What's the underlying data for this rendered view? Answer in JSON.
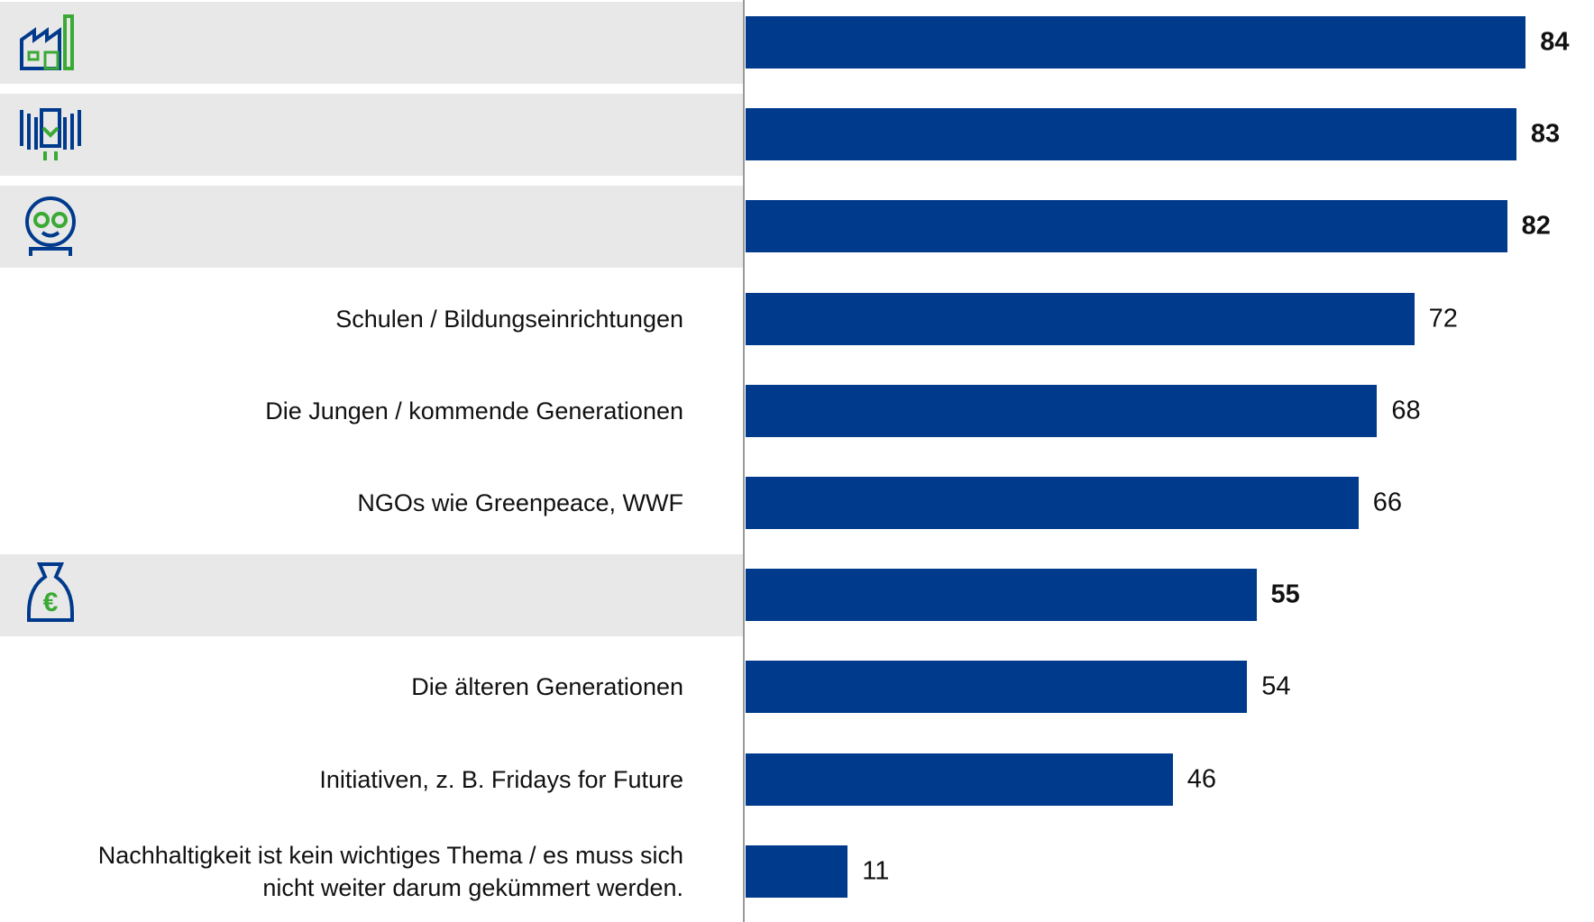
{
  "chart_data": {
    "type": "bar",
    "orientation": "horizontal",
    "categories": [
      "Industrieunternehmen",
      "Der Staat / Politik",
      "Jeder Verbraucher, also auch ich selbst",
      "Schulen / Bildungseinrichtungen",
      "Die Jungen / kommende Generationen",
      "NGOs wie Greenpeace,  WWF",
      "Finanzdienstleister / Banken und Versicherungen",
      "Die älteren Generationen",
      "Initiativen, z. B. Fridays for Future",
      "Nachhaltigkeit ist kein wichtiges Thema / es muss sich\nnicht weiter darum gekümmert werden."
    ],
    "values": [
      84,
      83,
      82,
      72,
      68,
      66,
      55,
      54,
      46,
      11
    ],
    "color": "#003a8c",
    "highlighted": [
      0,
      1,
      2,
      6
    ]
  }
}
